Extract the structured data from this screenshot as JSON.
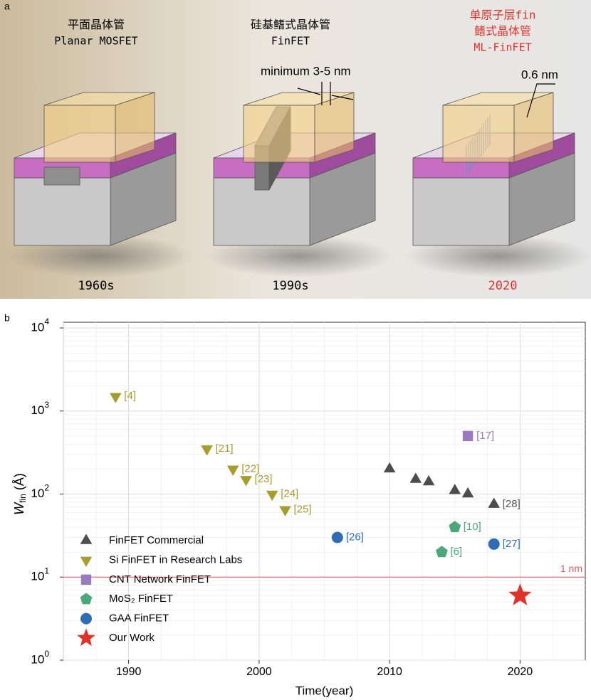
{
  "panel_a": {
    "label": "a",
    "devices": [
      {
        "title": [
          "平面晶体管",
          "Planar MOSFET"
        ],
        "year": "1960s"
      },
      {
        "title": [
          "硅基鳍式晶体管",
          "FinFET"
        ],
        "year": "1990s",
        "annotation": "minimum 3-5 nm"
      },
      {
        "title": [
          "单原子层fin",
          "鳍式晶体管",
          "ML-FinFET"
        ],
        "year": "2020",
        "annotation": "0.6 nm"
      }
    ]
  },
  "chart_data": {
    "type": "scatter",
    "panel_label": "b",
    "xlabel": "Time(year)",
    "ylabel": [
      "W",
      "fin",
      " (Å)"
    ],
    "xlim": [
      1985,
      2025
    ],
    "xticks": [
      1990,
      2000,
      2010,
      2020
    ],
    "ylim": [
      1,
      10000
    ],
    "log_y": true,
    "yticks": [
      {
        "value": 1,
        "label": "10^0"
      },
      {
        "value": 10,
        "label": "10^1"
      },
      {
        "value": 100,
        "label": "10^2"
      },
      {
        "value": 1000,
        "label": "10^3"
      },
      {
        "value": 10000,
        "label": "10^4"
      }
    ],
    "grid": true,
    "legend": "lower left",
    "hlines": [
      {
        "value": 10,
        "label": "1 nm",
        "color": "#e2585a"
      }
    ],
    "series": [
      {
        "name": "FinFET Commercial",
        "marker": "triangle-up",
        "color": "#4d4d4d",
        "x": [
          2010,
          2012,
          2013,
          2015,
          2016,
          2018
        ],
        "values": [
          200,
          150,
          140,
          110,
          100,
          75
        ],
        "labels": [
          null,
          null,
          null,
          null,
          null,
          "[28]"
        ]
      },
      {
        "name": "Si FinFET in Research Labs",
        "marker": "triangle-down",
        "color": "#a59d2c",
        "x": [
          1989,
          1996,
          1998,
          1999,
          2001,
          2002
        ],
        "values": [
          1500,
          350,
          200,
          150,
          100,
          65
        ],
        "labels": [
          "[4]",
          "[21]",
          "[22]",
          "[23]",
          "[24]",
          "[25]"
        ]
      },
      {
        "name": "CNT Network FinFET",
        "marker": "square",
        "color": "#9b7bbf",
        "x": [
          2016
        ],
        "values": [
          500
        ],
        "labels": [
          "[17]"
        ]
      },
      {
        "name": "MoS₂ FinFET",
        "marker": "pentagon",
        "color": "#4aa87a",
        "x": [
          2015,
          2014
        ],
        "values": [
          40,
          20
        ],
        "labels": [
          "[10]",
          "[6]"
        ]
      },
      {
        "name": "GAA FinFET",
        "marker": "circle",
        "color": "#2e6db5",
        "x": [
          2006,
          2018
        ],
        "values": [
          30,
          25
        ],
        "labels": [
          "[26]",
          "[27]"
        ]
      },
      {
        "name": "Our Work",
        "marker": "star",
        "color": "#e0322b",
        "x": [
          2020
        ],
        "values": [
          6
        ],
        "labels": [
          null
        ]
      }
    ]
  }
}
